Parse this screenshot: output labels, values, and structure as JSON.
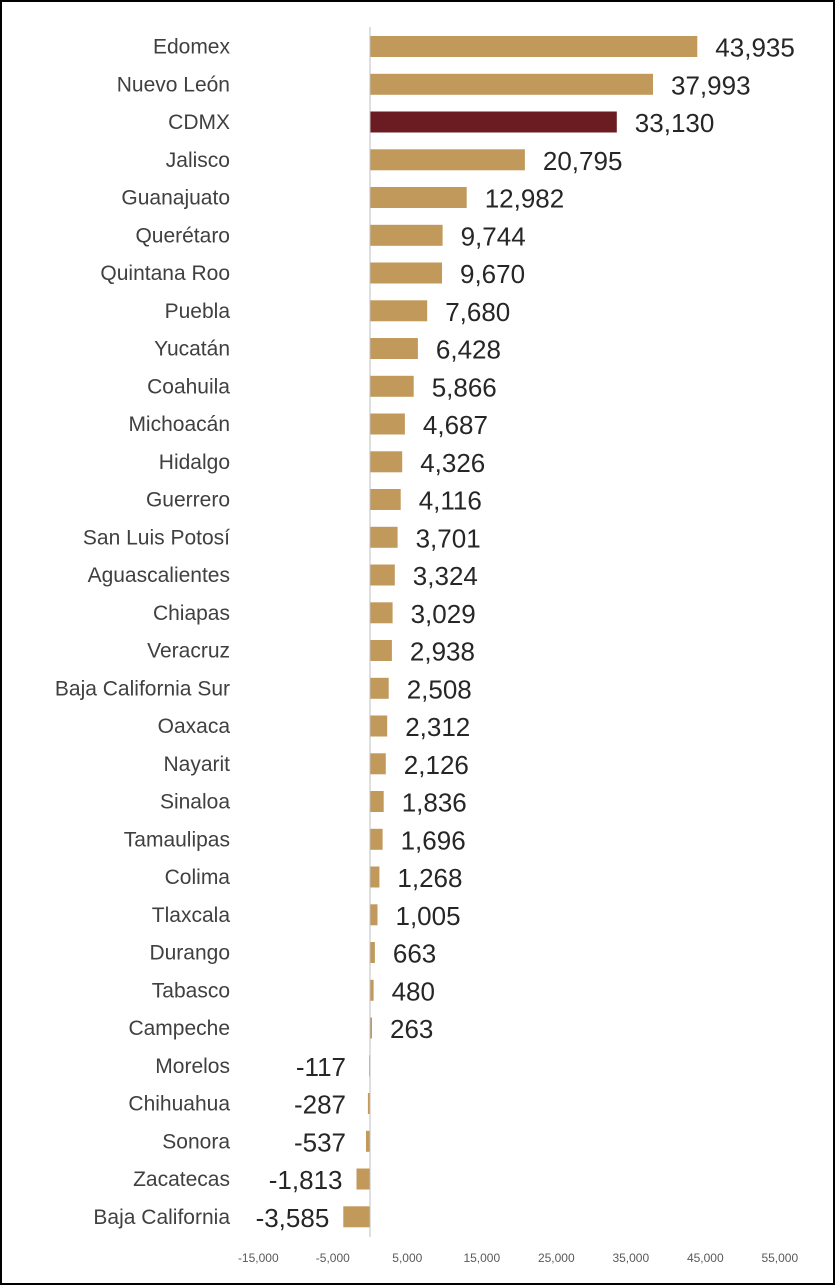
{
  "chart_data": {
    "type": "bar",
    "orientation": "horizontal",
    "categories": [
      "Edomex",
      "Nuevo León",
      "CDMX",
      "Jalisco",
      "Guanajuato",
      "Querétaro",
      "Quintana Roo",
      "Puebla",
      "Yucatán",
      "Coahuila",
      "Michoacán",
      "Hidalgo",
      "Guerrero",
      "San Luis Potosí",
      "Aguascalientes",
      "Chiapas",
      "Veracruz",
      "Baja California Sur",
      "Oaxaca",
      "Nayarit",
      "Sinaloa",
      "Tamaulipas",
      "Colima",
      "Tlaxcala",
      "Durango",
      "Tabasco",
      "Campeche",
      "Morelos",
      "Chihuahua",
      "Sonora",
      "Zacatecas",
      "Baja California"
    ],
    "values": [
      43935,
      37993,
      33130,
      20795,
      12982,
      9744,
      9670,
      7680,
      6428,
      5866,
      4687,
      4326,
      4116,
      3701,
      3324,
      3029,
      2938,
      2508,
      2312,
      2126,
      1836,
      1696,
      1268,
      1005,
      663,
      480,
      263,
      -117,
      -287,
      -537,
      -1813,
      -3585
    ],
    "value_labels": [
      "43,935",
      "37,993",
      "33,130",
      "20,795",
      "12,982",
      "9,744",
      "9,670",
      "7,680",
      "6,428",
      "5,866",
      "4,687",
      "4,326",
      "4,116",
      "3,701",
      "3,324",
      "3,029",
      "2,938",
      "2,508",
      "2,312",
      "2,126",
      "1,836",
      "1,696",
      "1,268",
      "1,005",
      "663",
      "480",
      "263",
      "-117",
      "-287",
      "-537",
      "-1,813",
      "-3,585"
    ],
    "highlight": "CDMX",
    "colors": {
      "bar": "#C19A5B",
      "highlight": "#6B1C23",
      "axis": "#BFBFBF"
    },
    "x_ticks": [
      -15000,
      -5000,
      5000,
      15000,
      25000,
      35000,
      45000,
      55000
    ],
    "x_tick_labels": [
      "-15,000",
      "-5,000",
      "5,000",
      "15,000",
      "25,000",
      "35,000",
      "45,000",
      "55,000"
    ],
    "xlim": [
      -15000,
      55000
    ],
    "grid": false,
    "legend": "none"
  }
}
